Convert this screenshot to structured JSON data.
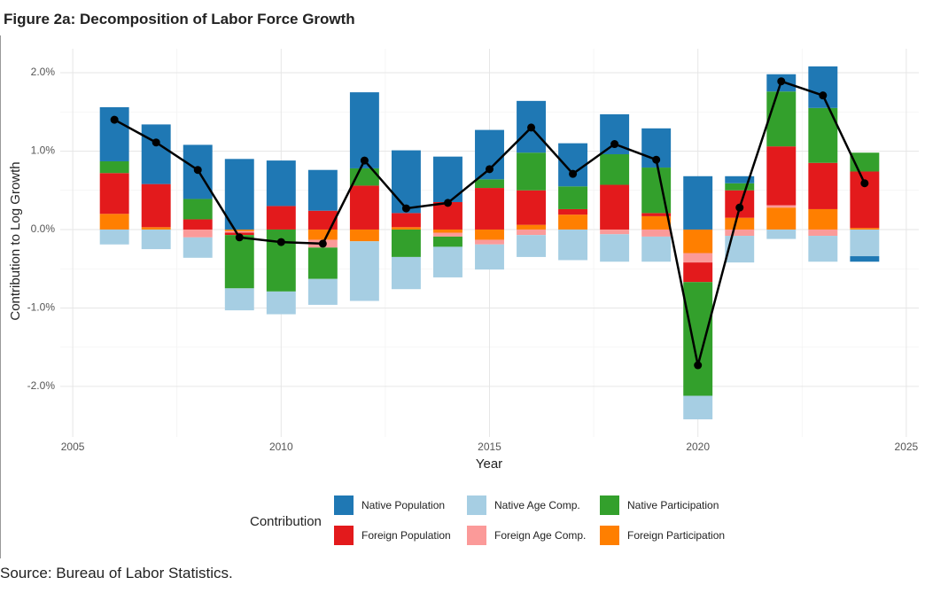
{
  "chart_data": {
    "type": "stacked-bar-line",
    "title": "Figure 2a: Decomposition of Labor Force Growth",
    "x_label": "Year",
    "y_label": "Contribution to Log Growth",
    "legend_title": "Contribution",
    "source": "Source: Bureau of Labor Statistics.",
    "x": [
      2006,
      2007,
      2008,
      2009,
      2010,
      2011,
      2012,
      2013,
      2014,
      2015,
      2016,
      2017,
      2018,
      2019,
      2020,
      2021,
      2022,
      2023,
      2024
    ],
    "series": [
      {
        "name": "Native Population",
        "color": "#1f78b4",
        "values": [
          0.69,
          0.76,
          0.69,
          0.9,
          0.58,
          0.52,
          0.97,
          0.8,
          0.58,
          0.63,
          0.66,
          0.55,
          0.51,
          0.5,
          0.68,
          0.09,
          0.22,
          0.53,
          -0.07
        ]
      },
      {
        "name": "Native Age Comp.",
        "color": "#a6cee3",
        "values": [
          -0.19,
          -0.25,
          -0.26,
          -0.28,
          -0.29,
          -0.33,
          -0.76,
          -0.41,
          -0.39,
          -0.32,
          -0.28,
          -0.39,
          -0.35,
          -0.32,
          -0.3,
          -0.34,
          -0.12,
          -0.33,
          -0.34
        ]
      },
      {
        "name": "Native Participation",
        "color": "#33a02c",
        "values": [
          0.15,
          0,
          0.26,
          -0.68,
          -0.79,
          -0.4,
          0.22,
          -0.35,
          -0.13,
          0.11,
          0.48,
          0.29,
          0.39,
          0.58,
          -1.45,
          0.09,
          0.7,
          0.7,
          0.24
        ]
      },
      {
        "name": "Foreign Population",
        "color": "#e31a1c",
        "values": [
          0.52,
          0.55,
          0.13,
          -0.03,
          0.3,
          0.24,
          0.56,
          0.18,
          0.35,
          0.53,
          0.44,
          0.07,
          0.57,
          0.04,
          -0.25,
          0.35,
          0.75,
          0.59,
          0.72
        ]
      },
      {
        "name": "Foreign Age Comp.",
        "color": "#fb9a99",
        "values": [
          0,
          0,
          -0.1,
          -0.02,
          0,
          -0.1,
          0,
          0,
          -0.05,
          -0.06,
          -0.07,
          0,
          -0.06,
          -0.09,
          -0.12,
          -0.08,
          0.03,
          -0.08,
          0
        ]
      },
      {
        "name": "Foreign Participation",
        "color": "#ff7f00",
        "values": [
          0.2,
          0.03,
          0,
          -0.02,
          0,
          -0.13,
          -0.15,
          0.03,
          -0.04,
          -0.13,
          0.06,
          0.19,
          0,
          0.17,
          -0.3,
          0.15,
          0.28,
          0.26,
          0.02
        ]
      }
    ],
    "line": {
      "color": "#000000",
      "values": [
        1.4,
        1.11,
        0.76,
        -0.1,
        -0.16,
        -0.18,
        0.88,
        0.27,
        0.34,
        0.77,
        1.3,
        0.71,
        1.09,
        0.89,
        -1.73,
        0.28,
        1.89,
        1.71,
        0.59
      ]
    },
    "xlim": [
      2004.7,
      2025.3
    ],
    "xticks": [
      2005,
      2010,
      2015,
      2020,
      2025
    ],
    "ylim": [
      -2.645,
      2.305
    ],
    "yticks": [
      {
        "value": -2,
        "label": "-2.0%"
      },
      {
        "value": -1,
        "label": "-1.0%"
      },
      {
        "value": 0,
        "label": "0.0%"
      },
      {
        "value": 1,
        "label": "1.0%"
      },
      {
        "value": 2,
        "label": "2.0%"
      }
    ],
    "bar_width": 0.7,
    "grid": true,
    "legend_position": "bottom"
  }
}
